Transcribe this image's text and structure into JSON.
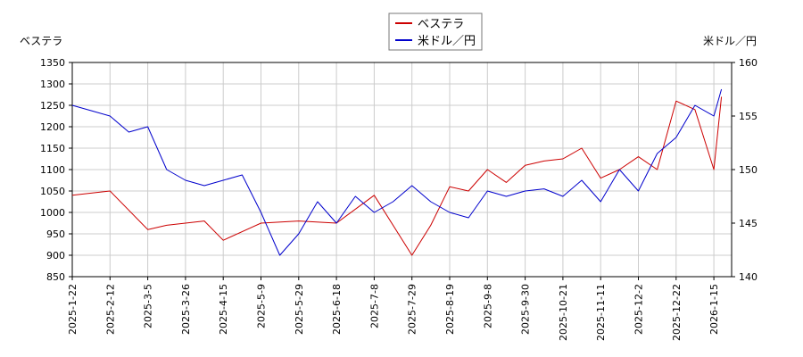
{
  "chart_data": {
    "type": "line",
    "legend_position": "top-center",
    "grid": true,
    "x_ticks": [
      "2025-1-22",
      "2025-2-12",
      "2025-3-5",
      "2025-3-26",
      "2025-4-15",
      "2025-5-9",
      "2025-5-29",
      "2025-6-18",
      "2025-7-8",
      "2025-7-29",
      "2025-8-19",
      "2025-9-8",
      "2025-9-30",
      "2025-10-21",
      "2025-11-11",
      "2025-12-2",
      "2025-12-22",
      "2026-1-15"
    ],
    "y_left": {
      "title": "ベステラ",
      "lim": [
        850,
        1350
      ],
      "ticks": [
        850,
        900,
        950,
        1000,
        1050,
        1100,
        1150,
        1200,
        1250,
        1300,
        1350
      ]
    },
    "y_right": {
      "title": "米ドル／円",
      "lim": [
        140,
        160
      ],
      "ticks": [
        140,
        145,
        150,
        155,
        160
      ]
    },
    "series": [
      {
        "name": "ベステラ",
        "color": "#cc0000",
        "axis": "left",
        "x": [
          0,
          1,
          2,
          2.5,
          3,
          3.5,
          4,
          5,
          6,
          7,
          8,
          9,
          9.5,
          10,
          10.5,
          11,
          11.5,
          12,
          12.5,
          13,
          13.5,
          14,
          14.5,
          15,
          15.5,
          16,
          16.5,
          17,
          17.2
        ],
        "values": [
          1040,
          1050,
          960,
          970,
          975,
          980,
          935,
          975,
          980,
          975,
          1040,
          900,
          970,
          1060,
          1050,
          1100,
          1070,
          1110,
          1120,
          1125,
          1150,
          1080,
          1100,
          1130,
          1100,
          1260,
          1240,
          1100,
          1270
        ]
      },
      {
        "name": "米ドル／円",
        "color": "#0000cc",
        "axis": "right",
        "x": [
          0,
          0.5,
          1,
          1.5,
          2,
          2.5,
          3,
          3.5,
          4,
          4.5,
          5,
          5.5,
          6,
          6.5,
          7,
          7.5,
          8,
          8.5,
          9,
          9.5,
          10,
          10.5,
          11,
          11.5,
          12,
          12.5,
          13,
          13.5,
          14,
          14.5,
          15,
          15.5,
          16,
          16.5,
          17,
          17.2
        ],
        "values": [
          156,
          155.5,
          155,
          153.5,
          154,
          150,
          149,
          148.5,
          149,
          149.5,
          146,
          142,
          144,
          147,
          145,
          147.5,
          146,
          147,
          148.5,
          147,
          146,
          145.5,
          148,
          147.5,
          148,
          148.2,
          147.5,
          149,
          147,
          150,
          148,
          151.5,
          153,
          156,
          155,
          157.5
        ]
      }
    ]
  }
}
